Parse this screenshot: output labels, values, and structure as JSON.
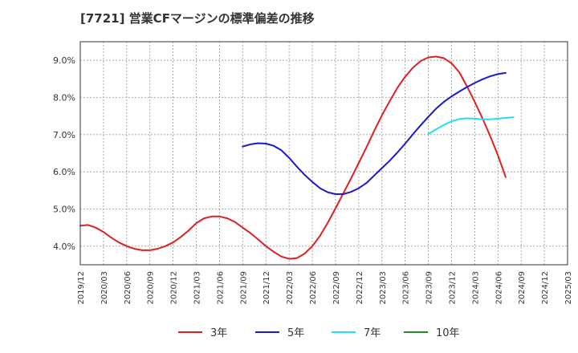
{
  "chart_data": {
    "type": "line",
    "title": "[7721]  営業CFマージンの標準偏差の推移",
    "xlabel": "",
    "ylabel": "",
    "ylim": [
      3.5,
      9.5
    ],
    "yticks": [
      4.0,
      5.0,
      6.0,
      7.0,
      8.0,
      9.0
    ],
    "ytick_labels": [
      "4.0%",
      "5.0%",
      "6.0%",
      "7.0%",
      "8.0%",
      "9.0%"
    ],
    "x_tick_labels": [
      "2019/12",
      "2020/03",
      "2020/06",
      "2020/09",
      "2020/12",
      "2021/03",
      "2021/06",
      "2021/09",
      "2021/12",
      "2022/03",
      "2022/06",
      "2022/09",
      "2022/12",
      "2023/03",
      "2023/06",
      "2023/09",
      "2023/12",
      "2024/03",
      "2024/06",
      "2024/09",
      "2024/12",
      "2025/03"
    ],
    "grid": true,
    "legend_position": "bottom",
    "series": [
      {
        "name": "3年",
        "color": "#e02020",
        "points": [
          [
            "2019/12",
            4.55
          ],
          [
            "2020/01",
            4.57
          ],
          [
            "2020/02",
            4.5
          ],
          [
            "2020/03",
            4.38
          ],
          [
            "2020/04",
            4.23
          ],
          [
            "2020/05",
            4.1
          ],
          [
            "2020/06",
            4.0
          ],
          [
            "2020/07",
            3.93
          ],
          [
            "2020/08",
            3.89
          ],
          [
            "2020/09",
            3.89
          ],
          [
            "2020/10",
            3.93
          ],
          [
            "2020/11",
            4.0
          ],
          [
            "2020/12",
            4.1
          ],
          [
            "2021/01",
            4.25
          ],
          [
            "2021/02",
            4.42
          ],
          [
            "2021/03",
            4.62
          ],
          [
            "2021/04",
            4.75
          ],
          [
            "2021/05",
            4.8
          ],
          [
            "2021/06",
            4.8
          ],
          [
            "2021/07",
            4.75
          ],
          [
            "2021/08",
            4.65
          ],
          [
            "2021/09",
            4.5
          ],
          [
            "2021/10",
            4.35
          ],
          [
            "2021/11",
            4.18
          ],
          [
            "2021/12",
            4.0
          ],
          [
            "2022/01",
            3.85
          ],
          [
            "2022/02",
            3.72
          ],
          [
            "2022/03",
            3.66
          ],
          [
            "2022/04",
            3.68
          ],
          [
            "2022/05",
            3.8
          ],
          [
            "2022/06",
            4.0
          ],
          [
            "2022/07",
            4.28
          ],
          [
            "2022/08",
            4.63
          ],
          [
            "2022/09",
            5.02
          ],
          [
            "2022/10",
            5.42
          ],
          [
            "2022/11",
            5.82
          ],
          [
            "2022/12",
            6.24
          ],
          [
            "2023/01",
            6.66
          ],
          [
            "2023/02",
            7.1
          ],
          [
            "2023/03",
            7.52
          ],
          [
            "2023/04",
            7.9
          ],
          [
            "2023/05",
            8.26
          ],
          [
            "2023/06",
            8.56
          ],
          [
            "2023/07",
            8.8
          ],
          [
            "2023/08",
            8.98
          ],
          [
            "2023/09",
            9.08
          ],
          [
            "2023/10",
            9.1
          ],
          [
            "2023/11",
            9.06
          ],
          [
            "2023/12",
            8.92
          ],
          [
            "2024/01",
            8.68
          ],
          [
            "2024/02",
            8.3
          ],
          [
            "2024/03",
            7.88
          ],
          [
            "2024/04",
            7.44
          ],
          [
            "2024/05",
            6.96
          ],
          [
            "2024/06",
            6.44
          ],
          [
            "2024/07",
            5.86
          ]
        ]
      },
      {
        "name": "5年",
        "color": "#1a1acc",
        "points": [
          [
            "2021/09",
            6.68
          ],
          [
            "2021/10",
            6.74
          ],
          [
            "2021/11",
            6.77
          ],
          [
            "2021/12",
            6.76
          ],
          [
            "2022/01",
            6.7
          ],
          [
            "2022/02",
            6.58
          ],
          [
            "2022/03",
            6.38
          ],
          [
            "2022/04",
            6.14
          ],
          [
            "2022/05",
            5.92
          ],
          [
            "2022/06",
            5.73
          ],
          [
            "2022/07",
            5.56
          ],
          [
            "2022/08",
            5.45
          ],
          [
            "2022/09",
            5.4
          ],
          [
            "2022/10",
            5.4
          ],
          [
            "2022/11",
            5.46
          ],
          [
            "2022/12",
            5.56
          ],
          [
            "2023/01",
            5.7
          ],
          [
            "2023/02",
            5.9
          ],
          [
            "2023/03",
            6.1
          ],
          [
            "2023/04",
            6.3
          ],
          [
            "2023/05",
            6.52
          ],
          [
            "2023/06",
            6.76
          ],
          [
            "2023/07",
            7.01
          ],
          [
            "2023/08",
            7.25
          ],
          [
            "2023/09",
            7.48
          ],
          [
            "2023/10",
            7.7
          ],
          [
            "2023/11",
            7.88
          ],
          [
            "2023/12",
            8.03
          ],
          [
            "2024/01",
            8.16
          ],
          [
            "2024/02",
            8.28
          ],
          [
            "2024/03",
            8.39
          ],
          [
            "2024/04",
            8.49
          ],
          [
            "2024/05",
            8.57
          ],
          [
            "2024/06",
            8.63
          ],
          [
            "2024/07",
            8.66
          ]
        ]
      },
      {
        "name": "7年",
        "color": "#22e0f0",
        "points": [
          [
            "2023/09",
            7.02
          ],
          [
            "2023/10",
            7.14
          ],
          [
            "2023/11",
            7.26
          ],
          [
            "2023/12",
            7.36
          ],
          [
            "2024/01",
            7.42
          ],
          [
            "2024/02",
            7.44
          ],
          [
            "2024/03",
            7.43
          ],
          [
            "2024/04",
            7.41
          ],
          [
            "2024/05",
            7.41
          ],
          [
            "2024/06",
            7.43
          ],
          [
            "2024/07",
            7.45
          ],
          [
            "2024/08",
            7.47
          ]
        ]
      },
      {
        "name": "10年",
        "color": "#228b22",
        "points": []
      }
    ]
  }
}
